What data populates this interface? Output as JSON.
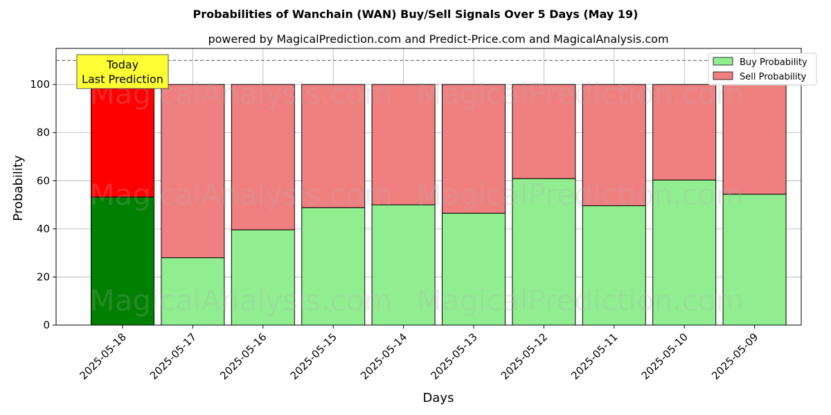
{
  "chart_data": {
    "type": "bar",
    "stacked": true,
    "title": "Probabilities of Wanchain (WAN) Buy/Sell Signals Over 5 Days (May 19)",
    "subtitle": "powered by MagicalPrediction.com and Predict-Price.com and MagicalAnalysis.com",
    "xlabel": "Days",
    "ylabel": "Probability",
    "ylim": [
      0,
      115
    ],
    "yticks": [
      0,
      20,
      40,
      60,
      80,
      100
    ],
    "grid": true,
    "legend_position": "top-right",
    "reference_line": 110,
    "categories": [
      "2025-05-18",
      "2025-05-17",
      "2025-05-16",
      "2025-05-15",
      "2025-05-14",
      "2025-05-13",
      "2025-05-12",
      "2025-05-11",
      "2025-05-10",
      "2025-05-09"
    ],
    "series": [
      {
        "name": "Buy Probability",
        "color": "#90ee90",
        "highlight_color": "#008000",
        "values": [
          53.2,
          28.0,
          39.6,
          48.8,
          50.0,
          46.5,
          60.9,
          49.6,
          60.3,
          54.4
        ]
      },
      {
        "name": "Sell Probability",
        "color": "#f08080",
        "highlight_color": "#ff0000",
        "values": [
          46.8,
          72.0,
          60.4,
          51.2,
          50.0,
          53.5,
          39.1,
          50.4,
          39.7,
          45.6
        ]
      }
    ],
    "highlight_index": 0,
    "annotation": {
      "lines": [
        "Today",
        "Last Prediction"
      ],
      "color": "#ffff33"
    },
    "watermarks": [
      "MagicalAnalysis.com",
      "MagicalPrediction.com"
    ]
  }
}
